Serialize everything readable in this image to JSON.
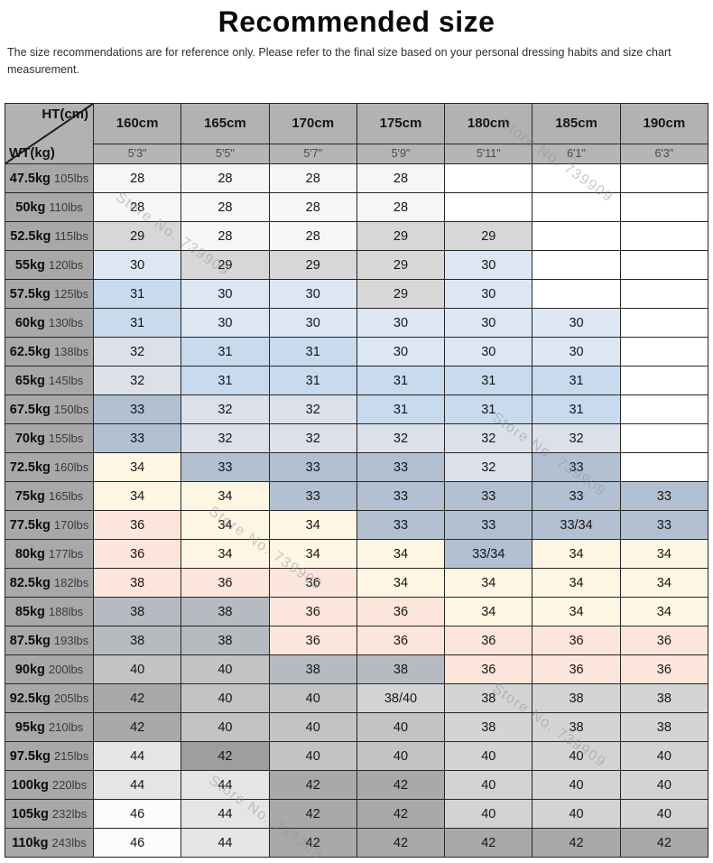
{
  "title": "Recommended size",
  "subtitle": "The size recommendations are for reference only. Please refer to the final size based on your personal dressing habits and size chart measurement.",
  "watermark": "Store No. 739909",
  "chart_data": {
    "type": "table",
    "corner_top": "HT(cm)",
    "corner_bottom": "WT(kg)",
    "columns": [
      {
        "cm": "160cm",
        "ft": "5'3\""
      },
      {
        "cm": "165cm",
        "ft": "5'5\""
      },
      {
        "cm": "170cm",
        "ft": "5'7\""
      },
      {
        "cm": "175cm",
        "ft": "5'9\""
      },
      {
        "cm": "180cm",
        "ft": "5'11\""
      },
      {
        "cm": "185cm",
        "ft": "6'1\""
      },
      {
        "cm": "190cm",
        "ft": "6'3\""
      }
    ],
    "palette": {
      "e": "#ffffff",
      "s28": "#f6f6f6",
      "g29": "#d7d7d7",
      "b30": "#dce7f3",
      "b31": "#c7daee",
      "gb32": "#dbe0e9",
      "sl33": "#b3c0d2",
      "cr34": "#fdf6e2",
      "pk36": "#fce6db",
      "gy38": "#b5bbc1",
      "g38l": "#d4d4d4",
      "g40": "#c3c3c3",
      "g40l": "#d3d3d3",
      "g42": "#a9a9a9",
      "g42d": "#9e9e9e",
      "g44": "#e5e5e5",
      "g46": "#fcfcfc"
    },
    "rows": [
      {
        "kg": "47.5kg",
        "lbs": "105lbs",
        "cells": [
          {
            "v": "28",
            "c": "s28"
          },
          {
            "v": "28",
            "c": "s28"
          },
          {
            "v": "28",
            "c": "s28"
          },
          {
            "v": "28",
            "c": "s28"
          },
          {
            "v": "",
            "c": "e"
          },
          {
            "v": "",
            "c": "e"
          },
          {
            "v": "",
            "c": "e"
          }
        ]
      },
      {
        "kg": "50kg",
        "lbs": "110lbs",
        "cells": [
          {
            "v": "28",
            "c": "s28"
          },
          {
            "v": "28",
            "c": "s28"
          },
          {
            "v": "28",
            "c": "s28"
          },
          {
            "v": "28",
            "c": "s28"
          },
          {
            "v": "",
            "c": "e"
          },
          {
            "v": "",
            "c": "e"
          },
          {
            "v": "",
            "c": "e"
          }
        ]
      },
      {
        "kg": "52.5kg",
        "lbs": "115lbs",
        "cells": [
          {
            "v": "29",
            "c": "g29"
          },
          {
            "v": "28",
            "c": "s28"
          },
          {
            "v": "28",
            "c": "s28"
          },
          {
            "v": "29",
            "c": "g29"
          },
          {
            "v": "29",
            "c": "g29"
          },
          {
            "v": "",
            "c": "e"
          },
          {
            "v": "",
            "c": "e"
          }
        ]
      },
      {
        "kg": "55kg",
        "lbs": "120lbs",
        "cells": [
          {
            "v": "30",
            "c": "b30"
          },
          {
            "v": "29",
            "c": "g29"
          },
          {
            "v": "29",
            "c": "g29"
          },
          {
            "v": "29",
            "c": "g29"
          },
          {
            "v": "30",
            "c": "b30"
          },
          {
            "v": "",
            "c": "e"
          },
          {
            "v": "",
            "c": "e"
          }
        ]
      },
      {
        "kg": "57.5kg",
        "lbs": "125lbs",
        "cells": [
          {
            "v": "31",
            "c": "b31"
          },
          {
            "v": "30",
            "c": "b30"
          },
          {
            "v": "30",
            "c": "b30"
          },
          {
            "v": "29",
            "c": "g29"
          },
          {
            "v": "30",
            "c": "b30"
          },
          {
            "v": "",
            "c": "e"
          },
          {
            "v": "",
            "c": "e"
          }
        ]
      },
      {
        "kg": "60kg",
        "lbs": "130lbs",
        "cells": [
          {
            "v": "31",
            "c": "b31"
          },
          {
            "v": "30",
            "c": "b30"
          },
          {
            "v": "30",
            "c": "b30"
          },
          {
            "v": "30",
            "c": "b30"
          },
          {
            "v": "30",
            "c": "b30"
          },
          {
            "v": "30",
            "c": "b30"
          },
          {
            "v": "",
            "c": "e"
          }
        ]
      },
      {
        "kg": "62.5kg",
        "lbs": "138lbs",
        "cells": [
          {
            "v": "32",
            "c": "gb32"
          },
          {
            "v": "31",
            "c": "b31"
          },
          {
            "v": "31",
            "c": "b31"
          },
          {
            "v": "30",
            "c": "b30"
          },
          {
            "v": "30",
            "c": "b30"
          },
          {
            "v": "30",
            "c": "b30"
          },
          {
            "v": "",
            "c": "e"
          }
        ]
      },
      {
        "kg": "65kg",
        "lbs": "145lbs",
        "cells": [
          {
            "v": "32",
            "c": "gb32"
          },
          {
            "v": "31",
            "c": "b31"
          },
          {
            "v": "31",
            "c": "b31"
          },
          {
            "v": "31",
            "c": "b31"
          },
          {
            "v": "31",
            "c": "b31"
          },
          {
            "v": "31",
            "c": "b31"
          },
          {
            "v": "",
            "c": "e"
          }
        ]
      },
      {
        "kg": "67.5kg",
        "lbs": "150lbs",
        "cells": [
          {
            "v": "33",
            "c": "sl33"
          },
          {
            "v": "32",
            "c": "gb32"
          },
          {
            "v": "32",
            "c": "gb32"
          },
          {
            "v": "31",
            "c": "b31"
          },
          {
            "v": "31",
            "c": "b31"
          },
          {
            "v": "31",
            "c": "b31"
          },
          {
            "v": "",
            "c": "e"
          }
        ]
      },
      {
        "kg": "70kg",
        "lbs": "155lbs",
        "cells": [
          {
            "v": "33",
            "c": "sl33"
          },
          {
            "v": "32",
            "c": "gb32"
          },
          {
            "v": "32",
            "c": "gb32"
          },
          {
            "v": "32",
            "c": "gb32"
          },
          {
            "v": "32",
            "c": "gb32"
          },
          {
            "v": "32",
            "c": "gb32"
          },
          {
            "v": "",
            "c": "e"
          }
        ]
      },
      {
        "kg": "72.5kg",
        "lbs": "160lbs",
        "cells": [
          {
            "v": "34",
            "c": "cr34"
          },
          {
            "v": "33",
            "c": "sl33"
          },
          {
            "v": "33",
            "c": "sl33"
          },
          {
            "v": "33",
            "c": "sl33"
          },
          {
            "v": "32",
            "c": "gb32"
          },
          {
            "v": "33",
            "c": "sl33"
          },
          {
            "v": "",
            "c": "e"
          }
        ]
      },
      {
        "kg": "75kg",
        "lbs": "165lbs",
        "cells": [
          {
            "v": "34",
            "c": "cr34"
          },
          {
            "v": "34",
            "c": "cr34"
          },
          {
            "v": "33",
            "c": "sl33"
          },
          {
            "v": "33",
            "c": "sl33"
          },
          {
            "v": "33",
            "c": "sl33"
          },
          {
            "v": "33",
            "c": "sl33"
          },
          {
            "v": "33",
            "c": "sl33"
          }
        ]
      },
      {
        "kg": "77.5kg",
        "lbs": "170lbs",
        "cells": [
          {
            "v": "36",
            "c": "pk36"
          },
          {
            "v": "34",
            "c": "cr34"
          },
          {
            "v": "34",
            "c": "cr34"
          },
          {
            "v": "33",
            "c": "sl33"
          },
          {
            "v": "33",
            "c": "sl33"
          },
          {
            "v": "33/34",
            "c": "sl33"
          },
          {
            "v": "33",
            "c": "sl33"
          }
        ]
      },
      {
        "kg": "80kg",
        "lbs": "177lbs",
        "cells": [
          {
            "v": "36",
            "c": "pk36"
          },
          {
            "v": "34",
            "c": "cr34"
          },
          {
            "v": "34",
            "c": "cr34"
          },
          {
            "v": "34",
            "c": "cr34"
          },
          {
            "v": "33/34",
            "c": "sl33"
          },
          {
            "v": "34",
            "c": "cr34"
          },
          {
            "v": "34",
            "c": "cr34"
          }
        ]
      },
      {
        "kg": "82.5kg",
        "lbs": "182lbs",
        "cells": [
          {
            "v": "38",
            "c": "pk36"
          },
          {
            "v": "36",
            "c": "pk36"
          },
          {
            "v": "36",
            "c": "pk36"
          },
          {
            "v": "34",
            "c": "cr34"
          },
          {
            "v": "34",
            "c": "cr34"
          },
          {
            "v": "34",
            "c": "cr34"
          },
          {
            "v": "34",
            "c": "cr34"
          }
        ]
      },
      {
        "kg": "85kg",
        "lbs": "188lbs",
        "cells": [
          {
            "v": "38",
            "c": "gy38"
          },
          {
            "v": "38",
            "c": "gy38"
          },
          {
            "v": "36",
            "c": "pk36"
          },
          {
            "v": "36",
            "c": "pk36"
          },
          {
            "v": "34",
            "c": "cr34"
          },
          {
            "v": "34",
            "c": "cr34"
          },
          {
            "v": "34",
            "c": "cr34"
          }
        ]
      },
      {
        "kg": "87.5kg",
        "lbs": "193lbs",
        "cells": [
          {
            "v": "38",
            "c": "gy38"
          },
          {
            "v": "38",
            "c": "gy38"
          },
          {
            "v": "36",
            "c": "pk36"
          },
          {
            "v": "36",
            "c": "pk36"
          },
          {
            "v": "36",
            "c": "pk36"
          },
          {
            "v": "36",
            "c": "pk36"
          },
          {
            "v": "36",
            "c": "pk36"
          }
        ]
      },
      {
        "kg": "90kg",
        "lbs": "200lbs",
        "cells": [
          {
            "v": "40",
            "c": "g40"
          },
          {
            "v": "40",
            "c": "g40"
          },
          {
            "v": "38",
            "c": "gy38"
          },
          {
            "v": "38",
            "c": "gy38"
          },
          {
            "v": "36",
            "c": "pk36"
          },
          {
            "v": "36",
            "c": "pk36"
          },
          {
            "v": "36",
            "c": "pk36"
          }
        ]
      },
      {
        "kg": "92.5kg",
        "lbs": "205lbs",
        "cells": [
          {
            "v": "42",
            "c": "g42"
          },
          {
            "v": "40",
            "c": "g40"
          },
          {
            "v": "40",
            "c": "g40"
          },
          {
            "v": "38/40",
            "c": "g38l"
          },
          {
            "v": "38",
            "c": "g38l"
          },
          {
            "v": "38",
            "c": "g38l"
          },
          {
            "v": "38",
            "c": "g38l"
          }
        ]
      },
      {
        "kg": "95kg",
        "lbs": "210lbs",
        "cells": [
          {
            "v": "42",
            "c": "g42"
          },
          {
            "v": "40",
            "c": "g40"
          },
          {
            "v": "40",
            "c": "g40"
          },
          {
            "v": "40",
            "c": "g40"
          },
          {
            "v": "38",
            "c": "g38l"
          },
          {
            "v": "38",
            "c": "g38l"
          },
          {
            "v": "38",
            "c": "g38l"
          }
        ]
      },
      {
        "kg": "97.5kg",
        "lbs": "215lbs",
        "cells": [
          {
            "v": "44",
            "c": "g44"
          },
          {
            "v": "42",
            "c": "g42d"
          },
          {
            "v": "40",
            "c": "g40"
          },
          {
            "v": "40",
            "c": "g40"
          },
          {
            "v": "40",
            "c": "g40l"
          },
          {
            "v": "40",
            "c": "g40l"
          },
          {
            "v": "40",
            "c": "g40l"
          }
        ]
      },
      {
        "kg": "100kg",
        "lbs": "220lbs",
        "cells": [
          {
            "v": "44",
            "c": "g44"
          },
          {
            "v": "44",
            "c": "g44"
          },
          {
            "v": "42",
            "c": "g42"
          },
          {
            "v": "42",
            "c": "g42"
          },
          {
            "v": "40",
            "c": "g40l"
          },
          {
            "v": "40",
            "c": "g40l"
          },
          {
            "v": "40",
            "c": "g40l"
          }
        ]
      },
      {
        "kg": "105kg",
        "lbs": "232lbs",
        "cells": [
          {
            "v": "46",
            "c": "g46"
          },
          {
            "v": "44",
            "c": "g44"
          },
          {
            "v": "42",
            "c": "g42"
          },
          {
            "v": "42",
            "c": "g42"
          },
          {
            "v": "40",
            "c": "g40l"
          },
          {
            "v": "40",
            "c": "g40l"
          },
          {
            "v": "40",
            "c": "g40l"
          }
        ]
      },
      {
        "kg": "110kg",
        "lbs": "243lbs",
        "cells": [
          {
            "v": "46",
            "c": "g46"
          },
          {
            "v": "44",
            "c": "g44"
          },
          {
            "v": "42",
            "c": "g42"
          },
          {
            "v": "42",
            "c": "g42"
          },
          {
            "v": "42",
            "c": "g42"
          },
          {
            "v": "42",
            "c": "g42"
          },
          {
            "v": "42",
            "c": "g42"
          }
        ]
      }
    ]
  }
}
